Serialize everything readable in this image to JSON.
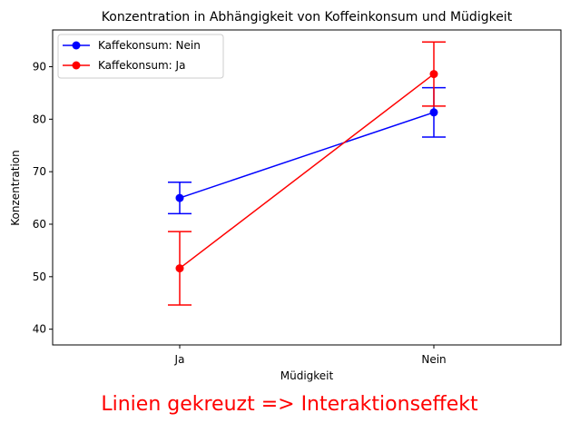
{
  "chart_data": {
    "type": "line",
    "title": "Konzentration in Abhängigkeit von Koffeinkonsum und Müdigkeit",
    "xlabel": "Müdigkeit",
    "ylabel": "Konzentration",
    "categories": [
      "Ja",
      "Nein"
    ],
    "xlim": [
      -0.5,
      1.5
    ],
    "ylim": [
      37,
      97
    ],
    "yticks": [
      40,
      50,
      60,
      70,
      80,
      90
    ],
    "grid": false,
    "legend_position": "top-left",
    "series": [
      {
        "name": "Kaffekonsum: Nein",
        "color": "#0000ff",
        "values": [
          65.0,
          81.3
        ],
        "error": [
          3.0,
          4.7
        ]
      },
      {
        "name": "Kaffekonsum: Ja",
        "color": "#ff0000",
        "values": [
          51.6,
          88.6
        ],
        "error": [
          7.0,
          6.1
        ]
      }
    ],
    "annotation": {
      "text": "Linien gekreuzt => Interaktionseffekt",
      "color": "#ff0000"
    }
  }
}
